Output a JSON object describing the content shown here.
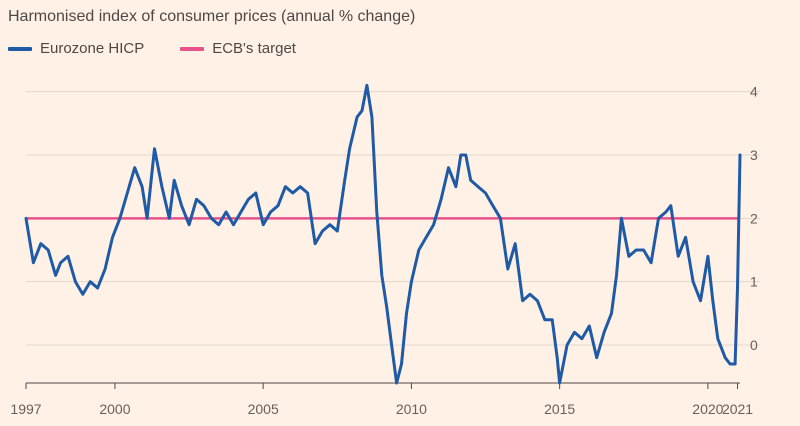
{
  "chart_data": {
    "type": "line",
    "title": "Harmonised index of consumer prices (annual % change)",
    "xlabel": "",
    "ylabel": "",
    "x_ticks": [
      "1997",
      "2000",
      "2005",
      "2010",
      "2015",
      "2020",
      "2021"
    ],
    "y_ticks": [
      "4",
      "3",
      "2",
      "1",
      "0"
    ],
    "xlim": [
      "1997-01",
      "2021-02"
    ],
    "ylim": [
      -0.6,
      4.5
    ],
    "grid": "horizontal",
    "legend_position": "top-left",
    "series": [
      {
        "name": "Eurozone HICP",
        "color": "#1f5aa6",
        "x": [
          "1997-01",
          "1997-04",
          "1997-07",
          "1997-10",
          "1998-01",
          "1998-03",
          "1998-06",
          "1998-09",
          "1998-12",
          "1999-03",
          "1999-06",
          "1999-09",
          "1999-12",
          "2000-03",
          "2000-06",
          "2000-09",
          "2000-12",
          "2001-02",
          "2001-05",
          "2001-08",
          "2001-11",
          "2002-01",
          "2002-04",
          "2002-07",
          "2002-10",
          "2003-01",
          "2003-04",
          "2003-07",
          "2003-10",
          "2004-01",
          "2004-04",
          "2004-07",
          "2004-10",
          "2005-01",
          "2005-04",
          "2005-07",
          "2005-10",
          "2006-01",
          "2006-04",
          "2006-07",
          "2006-10",
          "2007-01",
          "2007-04",
          "2007-07",
          "2007-10",
          "2007-12",
          "2008-03",
          "2008-05",
          "2008-07",
          "2008-09",
          "2008-11",
          "2009-01",
          "2009-03",
          "2009-05",
          "2009-07",
          "2009-09",
          "2009-11",
          "2010-01",
          "2010-04",
          "2010-07",
          "2010-10",
          "2011-01",
          "2011-04",
          "2011-07",
          "2011-09",
          "2011-11",
          "2012-01",
          "2012-04",
          "2012-07",
          "2012-10",
          "2013-01",
          "2013-04",
          "2013-07",
          "2013-10",
          "2014-01",
          "2014-04",
          "2014-07",
          "2014-10",
          "2014-12",
          "2015-01",
          "2015-04",
          "2015-07",
          "2015-10",
          "2016-01",
          "2016-04",
          "2016-07",
          "2016-10",
          "2016-12",
          "2017-02",
          "2017-05",
          "2017-08",
          "2017-11",
          "2018-02",
          "2018-05",
          "2018-08",
          "2018-10",
          "2019-01",
          "2019-04",
          "2019-07",
          "2019-10",
          "2020-01",
          "2020-03",
          "2020-05",
          "2020-08",
          "2020-10",
          "2020-12",
          "2021-01",
          "2021-02"
        ],
        "y": [
          2.0,
          1.3,
          1.6,
          1.5,
          1.1,
          1.3,
          1.4,
          1.0,
          0.8,
          1.0,
          0.9,
          1.2,
          1.7,
          2.0,
          2.4,
          2.8,
          2.5,
          2.0,
          3.1,
          2.5,
          2.0,
          2.6,
          2.2,
          1.9,
          2.3,
          2.2,
          2.0,
          1.9,
          2.1,
          1.9,
          2.1,
          2.3,
          2.4,
          1.9,
          2.1,
          2.2,
          2.5,
          2.4,
          2.5,
          2.4,
          1.6,
          1.8,
          1.9,
          1.8,
          2.6,
          3.1,
          3.6,
          3.7,
          4.1,
          3.6,
          2.1,
          1.1,
          0.6,
          0.0,
          -0.6,
          -0.3,
          0.5,
          1.0,
          1.5,
          1.7,
          1.9,
          2.3,
          2.8,
          2.5,
          3.0,
          3.0,
          2.6,
          2.5,
          2.4,
          2.2,
          2.0,
          1.2,
          1.6,
          0.7,
          0.8,
          0.7,
          0.4,
          0.4,
          -0.2,
          -0.6,
          0.0,
          0.2,
          0.1,
          0.3,
          -0.2,
          0.2,
          0.5,
          1.1,
          2.0,
          1.4,
          1.5,
          1.5,
          1.3,
          2.0,
          2.1,
          2.2,
          1.4,
          1.7,
          1.0,
          0.7,
          1.4,
          0.7,
          0.1,
          -0.2,
          -0.3,
          -0.3,
          0.9,
          3.0
        ]
      },
      {
        "name": "ECB's target",
        "color": "#e8528a",
        "x": [
          "1997-01",
          "2021-02"
        ],
        "y": [
          2,
          2
        ]
      }
    ]
  }
}
